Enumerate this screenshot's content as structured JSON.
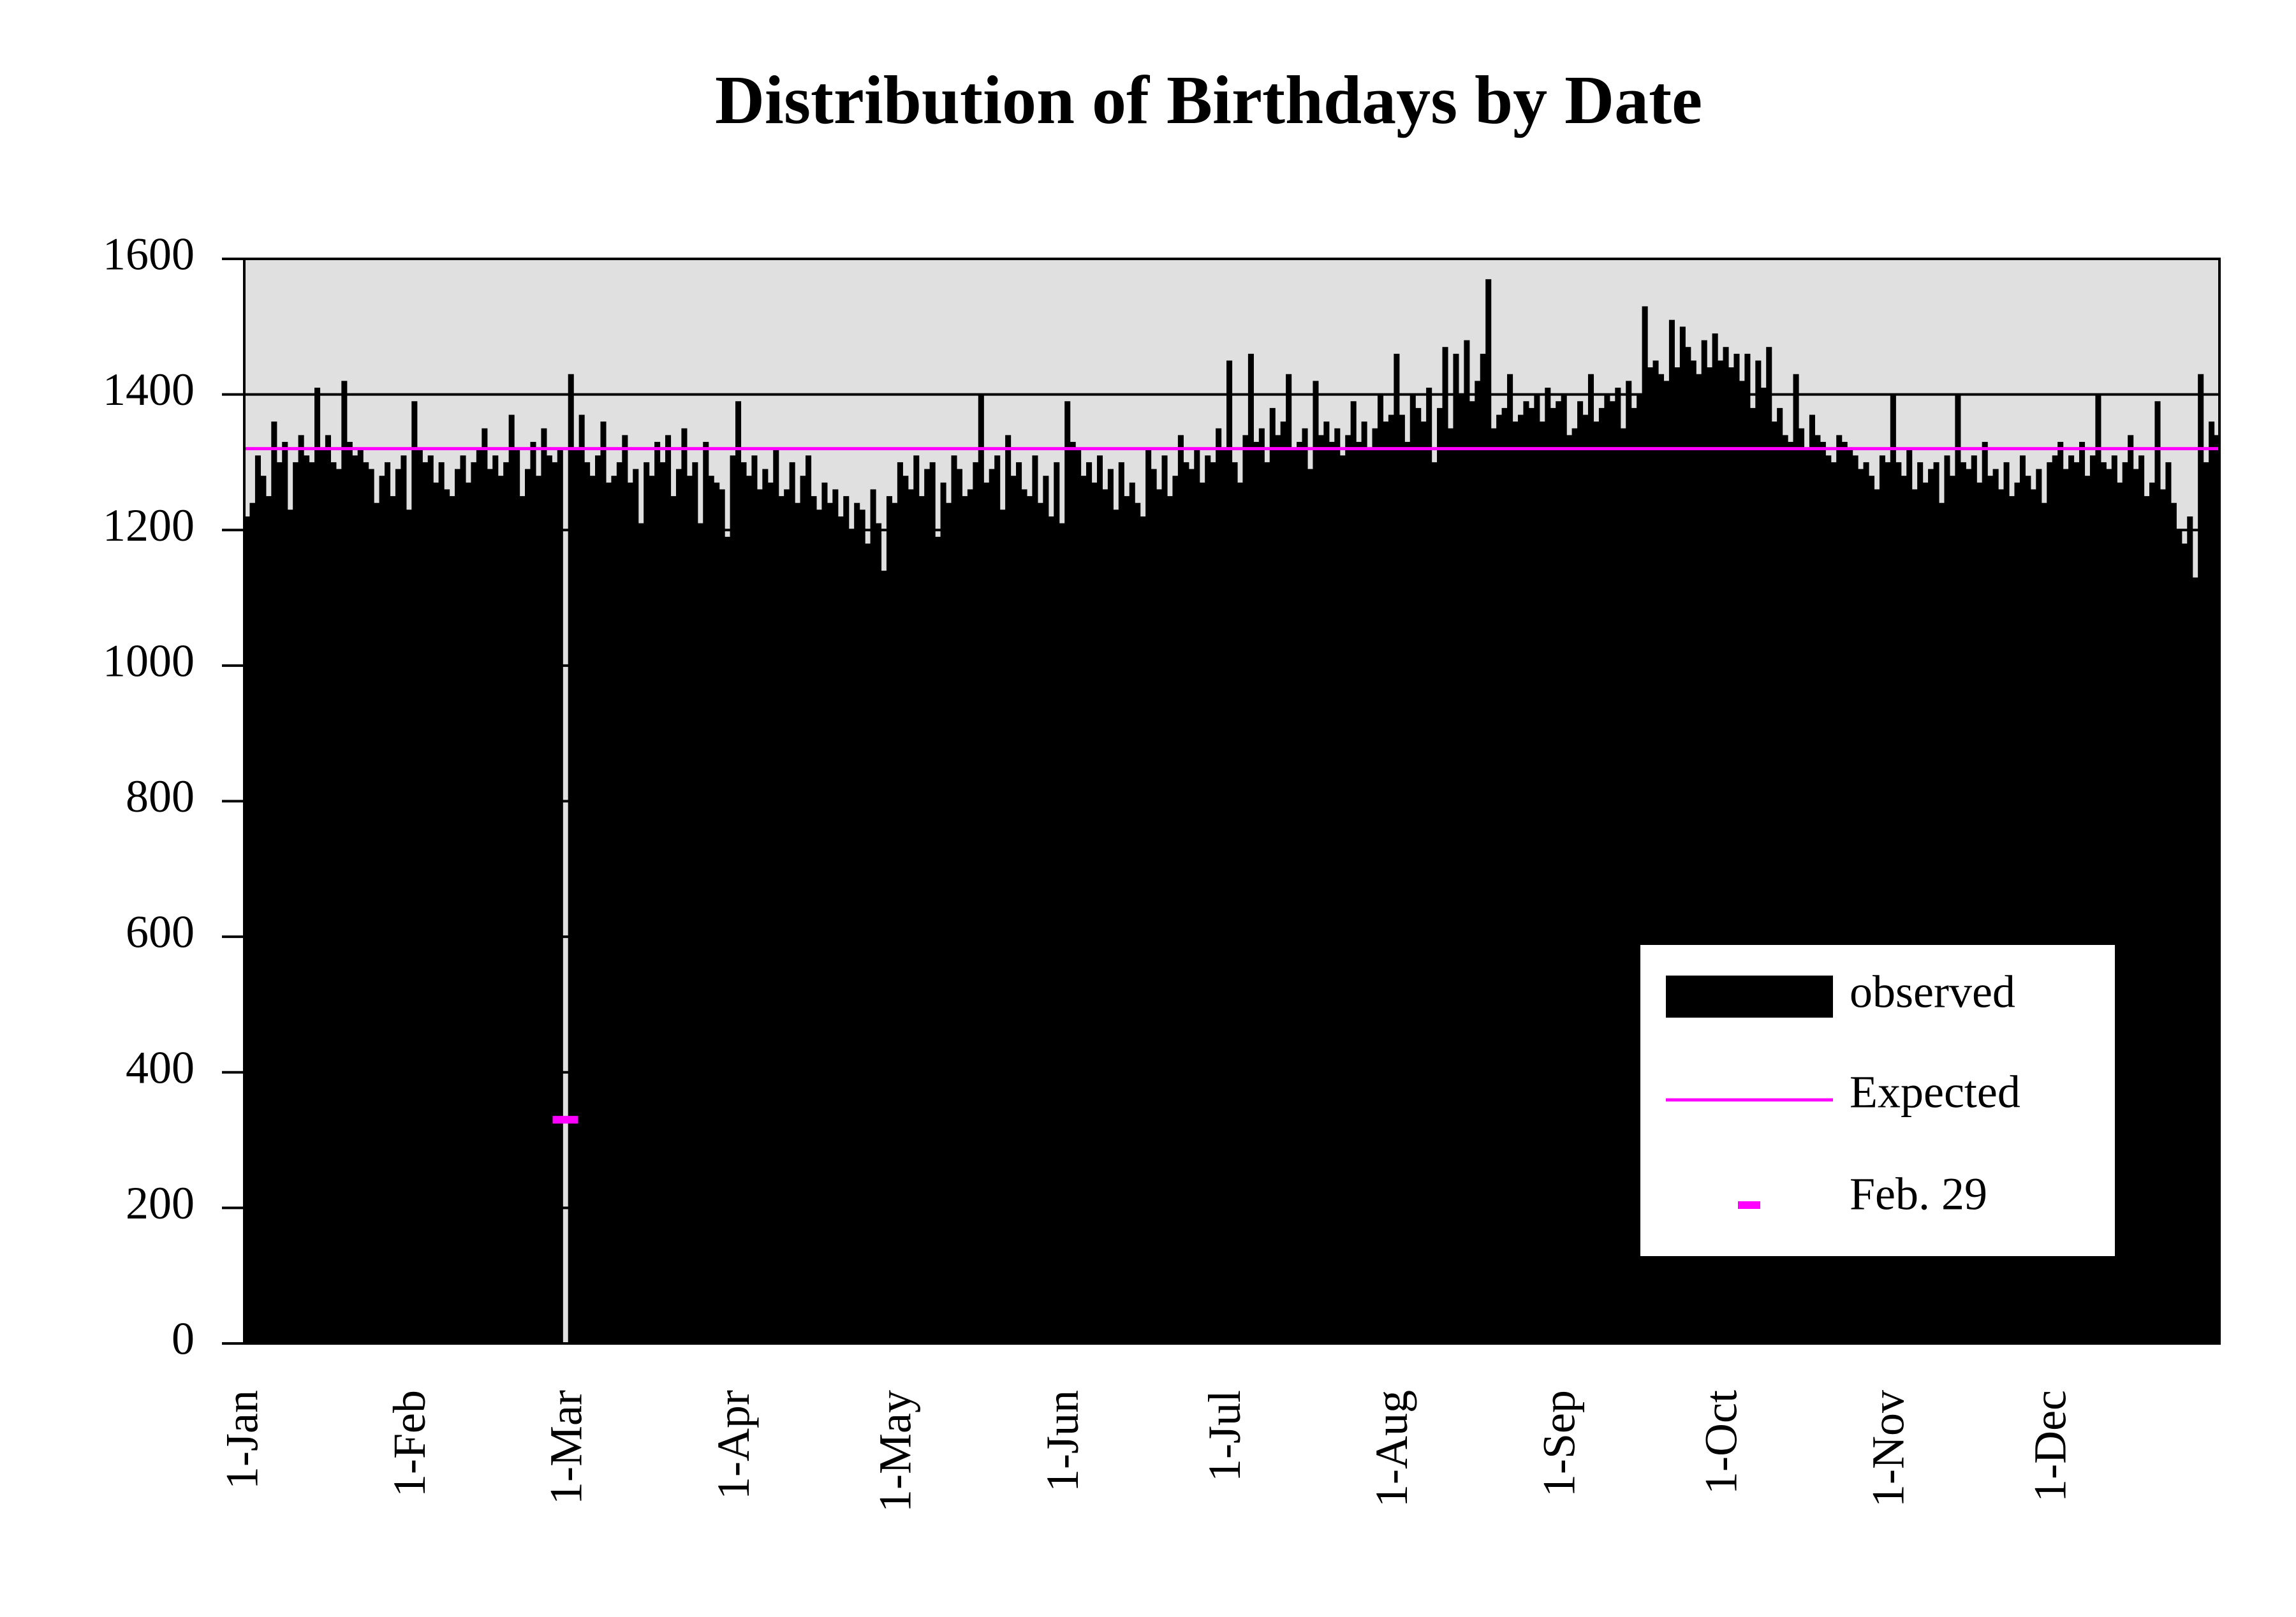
{
  "chart_data": {
    "type": "bar",
    "title": "Distribution of Birthdays by Date",
    "categories": [
      "1-Jan",
      null,
      null,
      null,
      null,
      null,
      null,
      null,
      null,
      null,
      null,
      null,
      null,
      null,
      null,
      null,
      null,
      null,
      null,
      null,
      null,
      null,
      null,
      null,
      null,
      null,
      null,
      null,
      null,
      null,
      null,
      "1-Feb",
      null,
      null,
      null,
      null,
      null,
      null,
      null,
      null,
      null,
      null,
      null,
      null,
      null,
      null,
      null,
      null,
      null,
      null,
      null,
      null,
      null,
      null,
      null,
      null,
      null,
      null,
      null,
      null,
      "1-Mar",
      null,
      null,
      null,
      null,
      null,
      null,
      null,
      null,
      null,
      null,
      null,
      null,
      null,
      null,
      null,
      null,
      null,
      null,
      null,
      null,
      null,
      null,
      null,
      null,
      null,
      null,
      null,
      null,
      null,
      null,
      "1-Apr",
      null,
      null,
      null,
      null,
      null,
      null,
      null,
      null,
      null,
      null,
      null,
      null,
      null,
      null,
      null,
      null,
      null,
      null,
      null,
      null,
      null,
      null,
      null,
      null,
      null,
      null,
      null,
      null,
      null,
      "1-May",
      null,
      null,
      null,
      null,
      null,
      null,
      null,
      null,
      null,
      null,
      null,
      null,
      null,
      null,
      null,
      null,
      null,
      null,
      null,
      null,
      null,
      null,
      null,
      null,
      null,
      null,
      null,
      null,
      null,
      null,
      "1-Jun",
      null,
      null,
      null,
      null,
      null,
      null,
      null,
      null,
      null,
      null,
      null,
      null,
      null,
      null,
      null,
      null,
      null,
      null,
      null,
      null,
      null,
      null,
      null,
      null,
      null,
      null,
      null,
      null,
      null,
      "1-Jul",
      null,
      null,
      null,
      null,
      null,
      null,
      null,
      null,
      null,
      null,
      null,
      null,
      null,
      null,
      null,
      null,
      null,
      null,
      null,
      null,
      null,
      null,
      null,
      null,
      null,
      null,
      null,
      null,
      null,
      null,
      "1-Aug",
      null,
      null,
      null,
      null,
      null,
      null,
      null,
      null,
      null,
      null,
      null,
      null,
      null,
      null,
      null,
      null,
      null,
      null,
      null,
      null,
      null,
      null,
      null,
      null,
      null,
      null,
      null,
      null,
      null,
      null,
      "1-Sep",
      null,
      null,
      null,
      null,
      null,
      null,
      null,
      null,
      null,
      null,
      null,
      null,
      null,
      null,
      null,
      null,
      null,
      null,
      null,
      null,
      null,
      null,
      null,
      null,
      null,
      null,
      null,
      null,
      null,
      "1-Oct",
      null,
      null,
      null,
      null,
      null,
      null,
      null,
      null,
      null,
      null,
      null,
      null,
      null,
      null,
      null,
      null,
      null,
      null,
      null,
      null,
      null,
      null,
      null,
      null,
      null,
      null,
      null,
      null,
      null,
      null,
      "1-Nov",
      null,
      null,
      null,
      null,
      null,
      null,
      null,
      null,
      null,
      null,
      null,
      null,
      null,
      null,
      null,
      null,
      null,
      null,
      null,
      null,
      null,
      null,
      null,
      null,
      null,
      null,
      null,
      null,
      null,
      "1-Dec",
      null,
      null,
      null,
      null,
      null,
      null,
      null,
      null,
      null,
      null,
      null,
      null,
      null,
      null,
      null,
      null,
      null,
      null,
      null,
      null,
      null,
      null,
      null,
      null,
      null,
      null,
      null,
      null,
      null,
      null
    ],
    "series": [
      {
        "name": "observed",
        "color": "#000000",
        "values": [
          1220,
          1240,
          1310,
          1280,
          1250,
          1360,
          1300,
          1330,
          1230,
          1300,
          1340,
          1310,
          1300,
          1410,
          1320,
          1340,
          1300,
          1290,
          1420,
          1330,
          1310,
          1320,
          1300,
          1290,
          1240,
          1280,
          1300,
          1250,
          1290,
          1310,
          1230,
          1390,
          1320,
          1300,
          1310,
          1270,
          1300,
          1260,
          1250,
          1290,
          1310,
          1270,
          1300,
          1320,
          1350,
          1290,
          1310,
          1280,
          1300,
          1370,
          1320,
          1250,
          1290,
          1330,
          1280,
          1350,
          1310,
          1300,
          1320,
          null,
          1430,
          1320,
          1370,
          1300,
          1280,
          1310,
          1360,
          1270,
          1280,
          1300,
          1340,
          1270,
          1290,
          1210,
          1300,
          1280,
          1330,
          1300,
          1340,
          1250,
          1290,
          1350,
          1280,
          1300,
          1210,
          1330,
          1280,
          1270,
          1260,
          1190,
          1310,
          1390,
          1300,
          1280,
          1310,
          1260,
          1290,
          1270,
          1320,
          1250,
          1260,
          1300,
          1240,
          1280,
          1310,
          1250,
          1230,
          1270,
          1240,
          1260,
          1220,
          1250,
          1200,
          1240,
          1230,
          1180,
          1260,
          1210,
          1140,
          1250,
          1240,
          1300,
          1280,
          1260,
          1310,
          1250,
          1290,
          1300,
          1190,
          1270,
          1240,
          1310,
          1290,
          1250,
          1260,
          1300,
          1400,
          1270,
          1290,
          1310,
          1230,
          1340,
          1280,
          1300,
          1260,
          1250,
          1310,
          1240,
          1280,
          1220,
          1300,
          1210,
          1390,
          1330,
          1320,
          1280,
          1300,
          1270,
          1310,
          1260,
          1290,
          1230,
          1300,
          1250,
          1270,
          1240,
          1220,
          1320,
          1290,
          1260,
          1310,
          1250,
          1280,
          1340,
          1300,
          1290,
          1320,
          1270,
          1310,
          1300,
          1350,
          1320,
          1450,
          1300,
          1270,
          1340,
          1460,
          1330,
          1350,
          1300,
          1380,
          1340,
          1360,
          1430,
          1320,
          1330,
          1350,
          1290,
          1420,
          1340,
          1360,
          1330,
          1350,
          1310,
          1340,
          1390,
          1330,
          1360,
          1320,
          1350,
          1400,
          1360,
          1370,
          1460,
          1370,
          1330,
          1400,
          1380,
          1360,
          1410,
          1300,
          1380,
          1470,
          1350,
          1460,
          1400,
          1480,
          1390,
          1420,
          1460,
          1570,
          1350,
          1370,
          1380,
          1430,
          1360,
          1370,
          1390,
          1380,
          1400,
          1360,
          1410,
          1380,
          1390,
          1400,
          1340,
          1350,
          1390,
          1370,
          1430,
          1360,
          1380,
          1400,
          1390,
          1410,
          1350,
          1420,
          1380,
          1400,
          1530,
          1440,
          1450,
          1430,
          1420,
          1510,
          1440,
          1500,
          1470,
          1450,
          1430,
          1480,
          1440,
          1490,
          1450,
          1470,
          1440,
          1460,
          1420,
          1460,
          1380,
          1450,
          1410,
          1470,
          1360,
          1380,
          1340,
          1330,
          1430,
          1350,
          1320,
          1370,
          1340,
          1330,
          1310,
          1300,
          1340,
          1330,
          1320,
          1310,
          1290,
          1300,
          1280,
          1260,
          1310,
          1300,
          1400,
          1300,
          1280,
          1320,
          1260,
          1300,
          1270,
          1290,
          1300,
          1240,
          1310,
          1280,
          1400,
          1300,
          1290,
          1310,
          1270,
          1330,
          1280,
          1290,
          1260,
          1300,
          1250,
          1270,
          1310,
          1280,
          1260,
          1290,
          1240,
          1300,
          1310,
          1330,
          1290,
          1310,
          1300,
          1330,
          1280,
          1310,
          1400,
          1300,
          1290,
          1310,
          1270,
          1300,
          1340,
          1290,
          1310,
          1250,
          1270,
          1390,
          1260,
          1300,
          1240,
          1200,
          1180,
          1220,
          1130,
          1430,
          1300,
          1360,
          1340
        ]
      },
      {
        "name": "Feb. 29",
        "color": "#ff00ff",
        "values": [
          null,
          null,
          null,
          null,
          null,
          null,
          null,
          null,
          null,
          null,
          null,
          null,
          null,
          null,
          null,
          null,
          null,
          null,
          null,
          null,
          null,
          null,
          null,
          null,
          null,
          null,
          null,
          null,
          null,
          null,
          null,
          null,
          null,
          null,
          null,
          null,
          null,
          null,
          null,
          null,
          null,
          null,
          null,
          null,
          null,
          null,
          null,
          null,
          null,
          null,
          null,
          null,
          null,
          null,
          null,
          null,
          null,
          null,
          null,
          330,
          null,
          null,
          null,
          null,
          null,
          null,
          null,
          null,
          null,
          null,
          null,
          null,
          null,
          null,
          null,
          null,
          null,
          null,
          null,
          null,
          null,
          null,
          null,
          null,
          null,
          null,
          null,
          null,
          null,
          null,
          null,
          null,
          null,
          null,
          null,
          null,
          null,
          null,
          null,
          null,
          null,
          null,
          null,
          null,
          null,
          null,
          null,
          null,
          null,
          null,
          null,
          null,
          null,
          null,
          null,
          null,
          null,
          null,
          null,
          null,
          null,
          null,
          null,
          null,
          null,
          null,
          null,
          null,
          null,
          null,
          null,
          null,
          null,
          null,
          null,
          null,
          null,
          null,
          null,
          null,
          null,
          null,
          null,
          null,
          null,
          null,
          null,
          null,
          null,
          null,
          null,
          null,
          null,
          null,
          null,
          null,
          null,
          null,
          null,
          null,
          null,
          null,
          null,
          null,
          null,
          null,
          null,
          null,
          null,
          null,
          null,
          null,
          null,
          null,
          null,
          null,
          null,
          null,
          null,
          null,
          null,
          null,
          null,
          null,
          null,
          null,
          null,
          null,
          null,
          null,
          null,
          null,
          null,
          null,
          null,
          null,
          null,
          null,
          null,
          null,
          null,
          null,
          null,
          null,
          null,
          null,
          null,
          null,
          null,
          null,
          null,
          null,
          null,
          null,
          null,
          null,
          null,
          null,
          null,
          null,
          null,
          null,
          null,
          null,
          null,
          null,
          null,
          null,
          null,
          null,
          null,
          null,
          null,
          null,
          null,
          null,
          null,
          null,
          null,
          null,
          null,
          null,
          null,
          null,
          null,
          null,
          null,
          null,
          null,
          null,
          null,
          null,
          null,
          null,
          null,
          null,
          null,
          null,
          null,
          null,
          null,
          null,
          null,
          null,
          null,
          null,
          null,
          null,
          null,
          null,
          null,
          null,
          null,
          null,
          null,
          null,
          null,
          null,
          null,
          null,
          null,
          null,
          null,
          null,
          null,
          null,
          null,
          null,
          null,
          null,
          null,
          null,
          null,
          null,
          null,
          null,
          null,
          null,
          null,
          null,
          null,
          null,
          null,
          null,
          null,
          null,
          null,
          null,
          null,
          null,
          null,
          null,
          null,
          null,
          null,
          null,
          null,
          null,
          null,
          null,
          null,
          null,
          null,
          null,
          null,
          null,
          null,
          null,
          null,
          null,
          null,
          null,
          null,
          null,
          null,
          null,
          null,
          null,
          null,
          null,
          null,
          null,
          null,
          null,
          null,
          null,
          null,
          null,
          null,
          null,
          null,
          null,
          null,
          null,
          null,
          null,
          null,
          null,
          null,
          null,
          null,
          null,
          null,
          null,
          null,
          null
        ]
      }
    ],
    "reference_line": {
      "name": "Expected",
      "color": "#ff00ff",
      "value": 1320
    },
    "ylim": [
      0,
      1600
    ],
    "yticks": [
      0,
      200,
      400,
      600,
      800,
      1000,
      1200,
      1400,
      1600
    ],
    "grid": true,
    "legend": "lower right"
  }
}
